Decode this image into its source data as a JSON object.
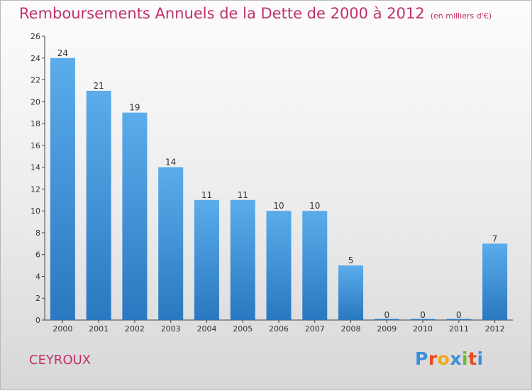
{
  "header": {
    "title": "Remboursements Annuels de la Dette de 2000 à 2012",
    "subtitle": "(en milliers d'€)"
  },
  "footer": {
    "commune": "CEYROUX",
    "brand": "Proxiti",
    "brand_colors": [
      "#3b8fd8",
      "#e84a1c",
      "#f0a81c",
      "#3b8fd8",
      "#6cb83a",
      "#e84a1c",
      "#3b8fd8"
    ]
  },
  "colors": {
    "title": "#c0306c",
    "bar_top": "#5aaceb",
    "bar_bottom": "#2a78bf",
    "axis": "#444444"
  },
  "chart_data": {
    "type": "bar",
    "categories": [
      "2000",
      "2001",
      "2002",
      "2003",
      "2004",
      "2005",
      "2006",
      "2007",
      "2008",
      "2009",
      "2010",
      "2011",
      "2012"
    ],
    "values": [
      24,
      21,
      19,
      14,
      11,
      11,
      10,
      10,
      5,
      0,
      0,
      0,
      7
    ],
    "data_labels": [
      "24",
      "21",
      "19",
      "14",
      "11",
      "11",
      "10",
      "10",
      "5",
      "0",
      "0",
      "0",
      "7"
    ],
    "ylim": [
      0,
      26
    ],
    "yticks": [
      0,
      2,
      4,
      6,
      8,
      10,
      12,
      14,
      16,
      18,
      20,
      22,
      24,
      26
    ],
    "grid": false,
    "xlabel": "",
    "ylabel": ""
  }
}
